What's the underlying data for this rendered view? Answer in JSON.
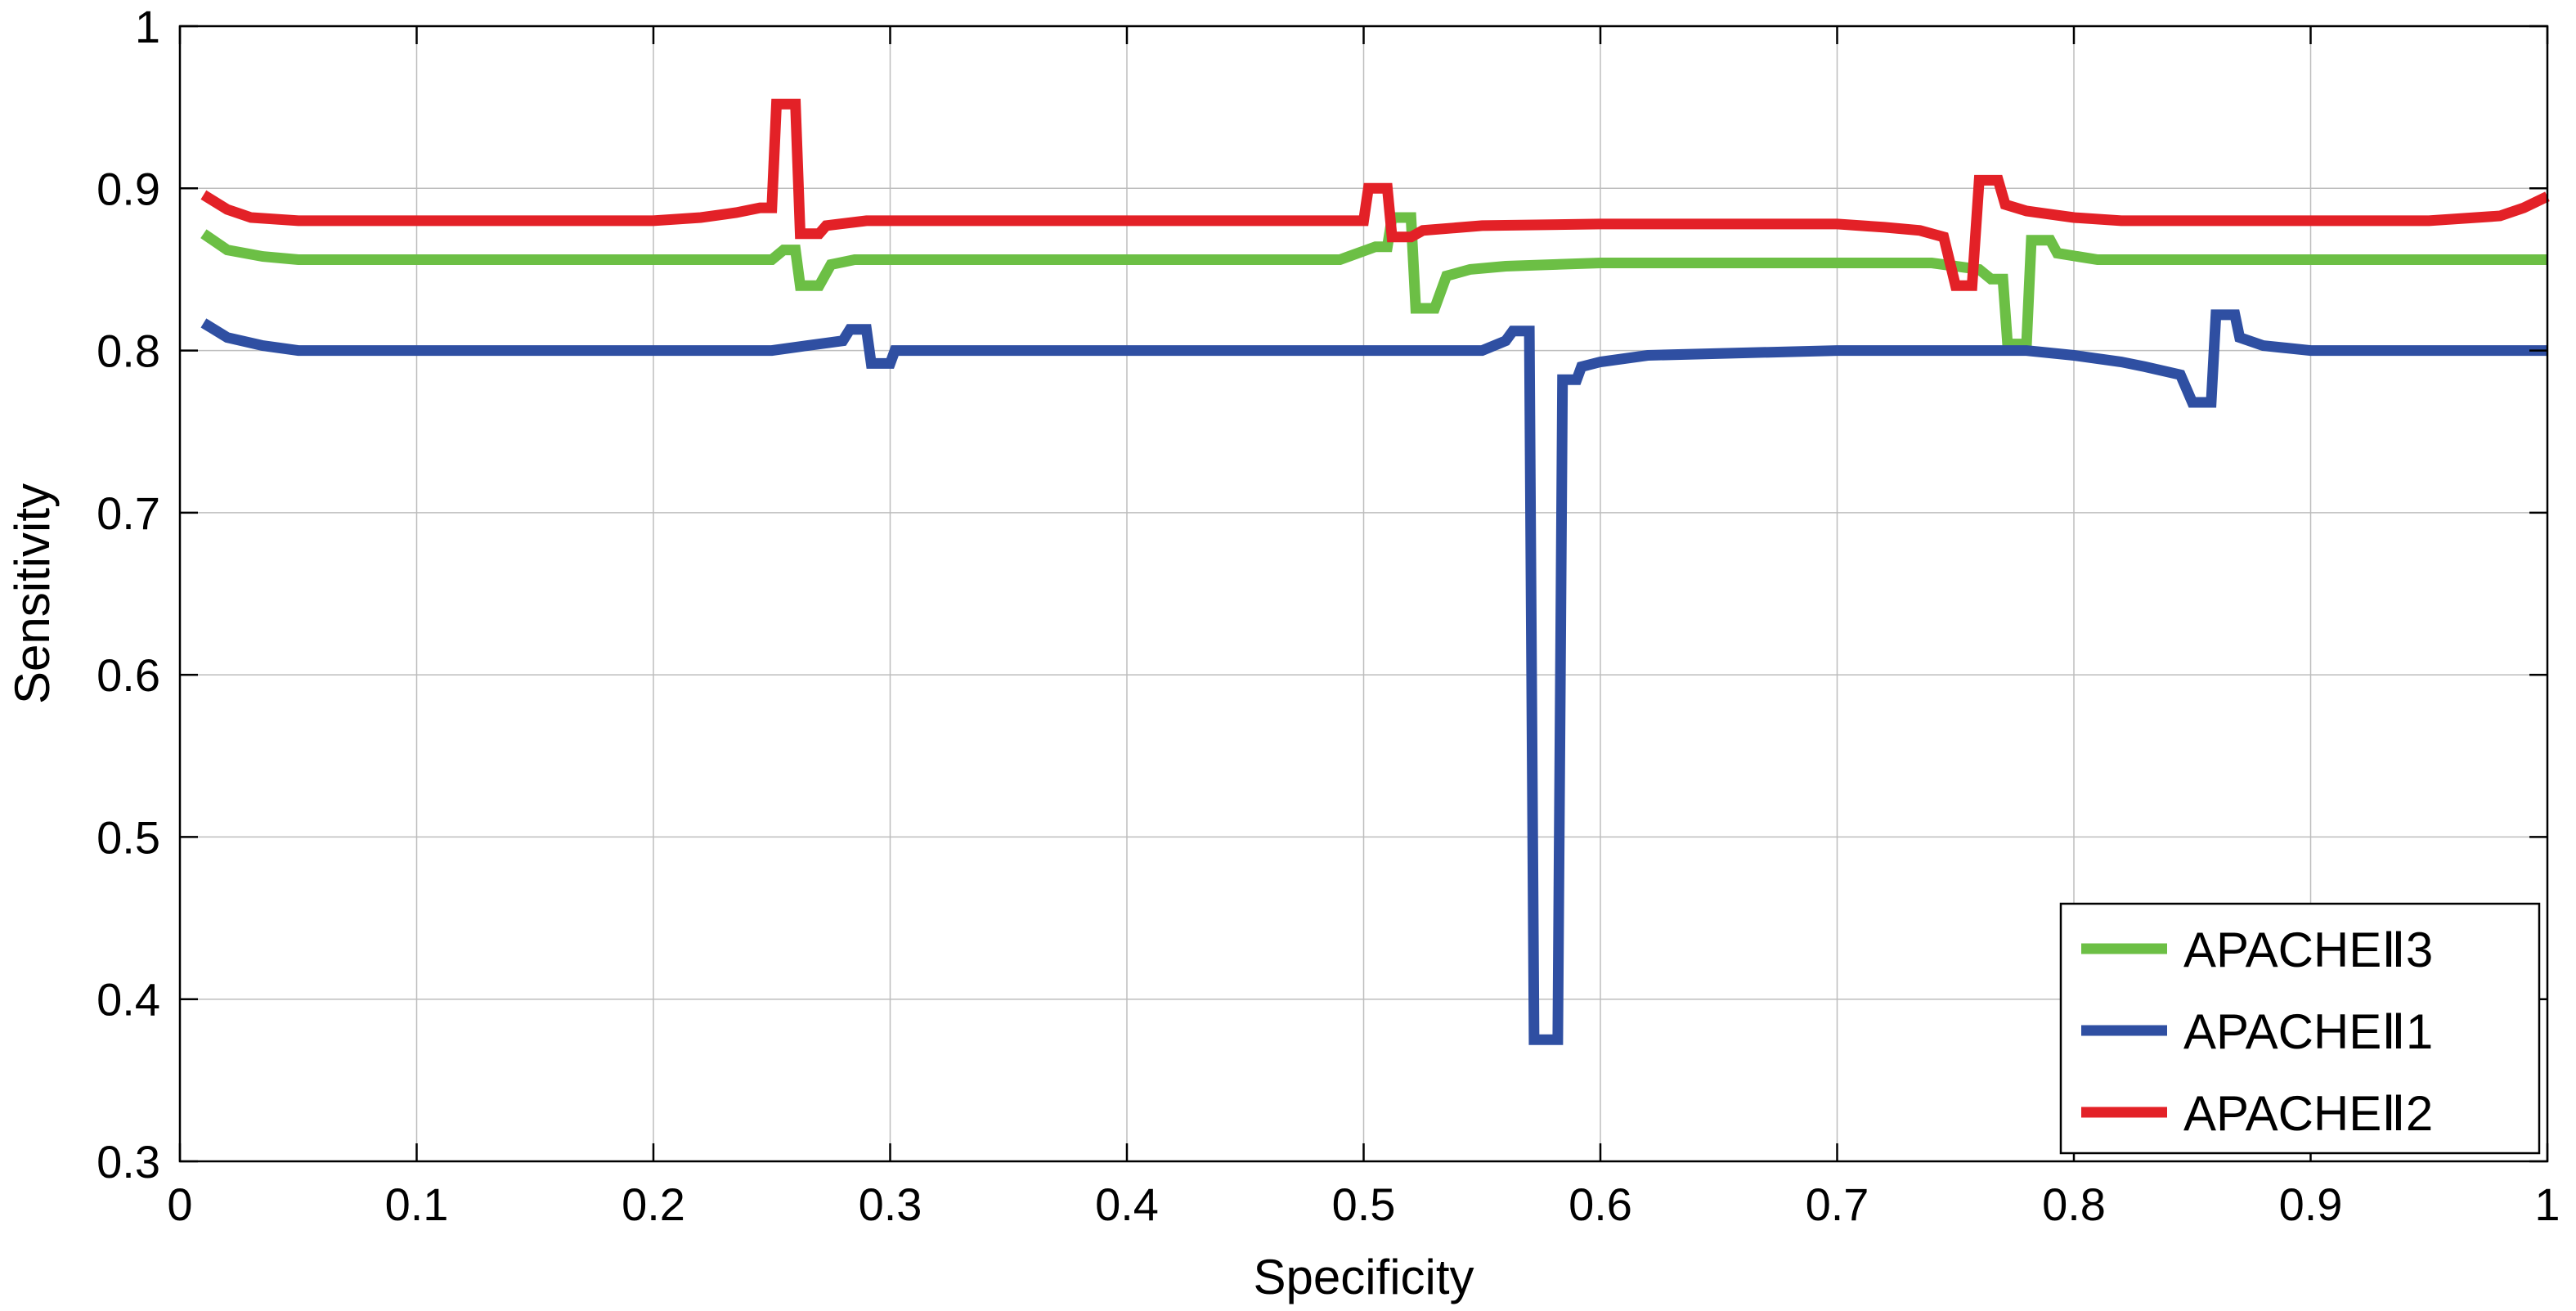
{
  "chart_data": {
    "type": "line",
    "title": "",
    "xlabel": "Specificity",
    "ylabel": "Sensitivity",
    "xlim": [
      0,
      1
    ],
    "ylim": [
      0.3,
      1
    ],
    "x_ticks": [
      0,
      0.1,
      0.2,
      0.3,
      0.4,
      0.5,
      0.6,
      0.7,
      0.8,
      0.9,
      1
    ],
    "x_tick_labels": [
      "0",
      "0.1",
      "0.2",
      "0.3",
      "0.4",
      "0.5",
      "0.6",
      "0.7",
      "0.8",
      "0.9",
      "1"
    ],
    "y_ticks": [
      0.3,
      0.4,
      0.5,
      0.6,
      0.7,
      0.8,
      0.9,
      1
    ],
    "y_tick_labels": [
      "0.3",
      "0.4",
      "0.5",
      "0.6",
      "0.7",
      "0.8",
      "0.9",
      "1"
    ],
    "grid": true,
    "step": true,
    "legend_position": "bottom-right",
    "series": [
      {
        "name": "APACHEⅡ3",
        "color": "#6cbf45",
        "points": [
          [
            0.01,
            0.872
          ],
          [
            0.02,
            0.862
          ],
          [
            0.035,
            0.858
          ],
          [
            0.05,
            0.856
          ],
          [
            0.25,
            0.856
          ],
          [
            0.255,
            0.862
          ],
          [
            0.26,
            0.862
          ],
          [
            0.262,
            0.84
          ],
          [
            0.27,
            0.84
          ],
          [
            0.275,
            0.853
          ],
          [
            0.285,
            0.856
          ],
          [
            0.49,
            0.856
          ],
          [
            0.505,
            0.864
          ],
          [
            0.51,
            0.864
          ],
          [
            0.512,
            0.882
          ],
          [
            0.52,
            0.882
          ],
          [
            0.522,
            0.826
          ],
          [
            0.53,
            0.826
          ],
          [
            0.535,
            0.846
          ],
          [
            0.545,
            0.85
          ],
          [
            0.56,
            0.852
          ],
          [
            0.6,
            0.854
          ],
          [
            0.74,
            0.854
          ],
          [
            0.76,
            0.85
          ],
          [
            0.765,
            0.844
          ],
          [
            0.77,
            0.844
          ],
          [
            0.772,
            0.804
          ],
          [
            0.78,
            0.804
          ],
          [
            0.782,
            0.868
          ],
          [
            0.79,
            0.868
          ],
          [
            0.793,
            0.86
          ],
          [
            0.81,
            0.856
          ],
          [
            1.0,
            0.856
          ]
        ]
      },
      {
        "name": "APACHEⅡ1",
        "color": "#2f4fa2",
        "points": [
          [
            0.01,
            0.817
          ],
          [
            0.02,
            0.808
          ],
          [
            0.035,
            0.803
          ],
          [
            0.05,
            0.8
          ],
          [
            0.25,
            0.8
          ],
          [
            0.265,
            0.803
          ],
          [
            0.28,
            0.806
          ],
          [
            0.283,
            0.813
          ],
          [
            0.29,
            0.813
          ],
          [
            0.292,
            0.792
          ],
          [
            0.3,
            0.792
          ],
          [
            0.302,
            0.8
          ],
          [
            0.55,
            0.8
          ],
          [
            0.56,
            0.806
          ],
          [
            0.563,
            0.812
          ],
          [
            0.57,
            0.812
          ],
          [
            0.572,
            0.375
          ],
          [
            0.582,
            0.375
          ],
          [
            0.584,
            0.782
          ],
          [
            0.59,
            0.782
          ],
          [
            0.592,
            0.79
          ],
          [
            0.6,
            0.793
          ],
          [
            0.62,
            0.797
          ],
          [
            0.7,
            0.8
          ],
          [
            0.78,
            0.8
          ],
          [
            0.8,
            0.797
          ],
          [
            0.82,
            0.793
          ],
          [
            0.83,
            0.79
          ],
          [
            0.845,
            0.785
          ],
          [
            0.85,
            0.768
          ],
          [
            0.858,
            0.768
          ],
          [
            0.86,
            0.822
          ],
          [
            0.868,
            0.822
          ],
          [
            0.87,
            0.808
          ],
          [
            0.88,
            0.803
          ],
          [
            0.9,
            0.8
          ],
          [
            1.0,
            0.8
          ]
        ]
      },
      {
        "name": "APACHEⅡ2",
        "color": "#e32127",
        "points": [
          [
            0.01,
            0.896
          ],
          [
            0.02,
            0.887
          ],
          [
            0.03,
            0.882
          ],
          [
            0.05,
            0.88
          ],
          [
            0.2,
            0.88
          ],
          [
            0.22,
            0.882
          ],
          [
            0.235,
            0.885
          ],
          [
            0.245,
            0.888
          ],
          [
            0.25,
            0.888
          ],
          [
            0.252,
            0.952
          ],
          [
            0.26,
            0.952
          ],
          [
            0.262,
            0.872
          ],
          [
            0.27,
            0.872
          ],
          [
            0.273,
            0.877
          ],
          [
            0.29,
            0.88
          ],
          [
            0.5,
            0.88
          ],
          [
            0.502,
            0.9
          ],
          [
            0.51,
            0.9
          ],
          [
            0.512,
            0.87
          ],
          [
            0.52,
            0.87
          ],
          [
            0.525,
            0.874
          ],
          [
            0.55,
            0.877
          ],
          [
            0.6,
            0.878
          ],
          [
            0.7,
            0.878
          ],
          [
            0.72,
            0.876
          ],
          [
            0.735,
            0.874
          ],
          [
            0.745,
            0.87
          ],
          [
            0.75,
            0.84
          ],
          [
            0.757,
            0.84
          ],
          [
            0.76,
            0.905
          ],
          [
            0.768,
            0.905
          ],
          [
            0.771,
            0.89
          ],
          [
            0.78,
            0.886
          ],
          [
            0.8,
            0.882
          ],
          [
            0.82,
            0.88
          ],
          [
            0.95,
            0.88
          ],
          [
            0.98,
            0.883
          ],
          [
            0.99,
            0.888
          ],
          [
            1.0,
            0.895
          ]
        ]
      }
    ]
  }
}
